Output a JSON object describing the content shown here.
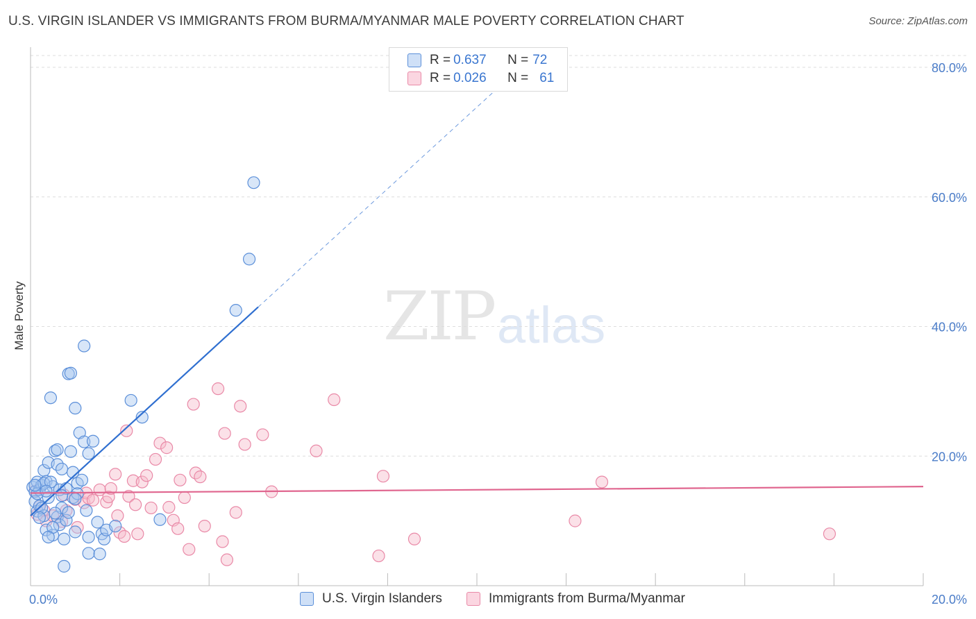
{
  "header": {
    "title": "U.S. VIRGIN ISLANDER VS IMMIGRANTS FROM BURMA/MYANMAR MALE POVERTY CORRELATION CHART",
    "source": "Source: ZipAtlas.com"
  },
  "watermark": {
    "zip": "ZIP",
    "atlas": "atlas"
  },
  "legend": {
    "blue": {
      "r_label": "R = ",
      "r_value": "0.637",
      "n_label": "N = ",
      "n_value": "72"
    },
    "pink": {
      "r_label": "R = ",
      "r_value": "0.026",
      "n_label": "N = ",
      "n_value": "61"
    }
  },
  "colors": {
    "blue_fill": "#a9c8f0",
    "blue_stroke": "#5b8fd9",
    "blue_line": "#2f6fd0",
    "pink_fill": "#f6bccd",
    "pink_stroke": "#e989a7",
    "pink_line": "#e0668f",
    "grid": "#dddddd",
    "tick_text": "#4a7cc8"
  },
  "chart_data": {
    "type": "scatter",
    "title": "U.S. VIRGIN ISLANDER VS IMMIGRANTS FROM BURMA/MYANMAR MALE POVERTY CORRELATION CHART",
    "xlabel": "",
    "ylabel": "Male Poverty",
    "xlim": [
      0,
      20
    ],
    "ylim": [
      0,
      80
    ],
    "y_ticks": [
      "20.0%",
      "40.0%",
      "60.0%",
      "80.0%"
    ],
    "x_tick_labels": [
      "0.0%",
      "20.0%"
    ],
    "series": [
      {
        "name": "U.S. Virgin Islanders",
        "color": "blue",
        "trend": {
          "x": [
            0,
            5.1
          ],
          "y": [
            10.8,
            43.0
          ],
          "dashed_to": [
            10.5,
            77
          ]
        },
        "points": [
          [
            0.05,
            15.2
          ],
          [
            0.1,
            14.5
          ],
          [
            0.1,
            13.0
          ],
          [
            0.15,
            16.0
          ],
          [
            0.15,
            11.5
          ],
          [
            0.2,
            14.8
          ],
          [
            0.2,
            12.3
          ],
          [
            0.25,
            15.5
          ],
          [
            0.3,
            17.8
          ],
          [
            0.3,
            10.8
          ],
          [
            0.35,
            16.1
          ],
          [
            0.35,
            8.6
          ],
          [
            0.4,
            19.0
          ],
          [
            0.4,
            13.6
          ],
          [
            0.45,
            29.0
          ],
          [
            0.5,
            15.3
          ],
          [
            0.5,
            7.8
          ],
          [
            0.55,
            20.8
          ],
          [
            0.6,
            21.0
          ],
          [
            0.6,
            18.7
          ],
          [
            0.6,
            10.6
          ],
          [
            0.65,
            14.8
          ],
          [
            0.65,
            9.4
          ],
          [
            0.7,
            18.0
          ],
          [
            0.7,
            12.0
          ],
          [
            0.75,
            3.0
          ],
          [
            0.75,
            7.2
          ],
          [
            0.8,
            15.0
          ],
          [
            0.8,
            10.1
          ],
          [
            0.85,
            32.7
          ],
          [
            0.9,
            32.8
          ],
          [
            0.9,
            20.7
          ],
          [
            0.95,
            17.5
          ],
          [
            0.95,
            13.6
          ],
          [
            1.0,
            27.4
          ],
          [
            1.0,
            8.3
          ],
          [
            1.05,
            15.8
          ],
          [
            1.05,
            14.2
          ],
          [
            1.1,
            23.6
          ],
          [
            1.15,
            16.3
          ],
          [
            1.2,
            37.0
          ],
          [
            1.2,
            22.2
          ],
          [
            1.25,
            11.6
          ],
          [
            1.3,
            20.4
          ],
          [
            1.3,
            7.5
          ],
          [
            1.3,
            5.0
          ],
          [
            1.4,
            22.3
          ],
          [
            1.5,
            9.8
          ],
          [
            1.55,
            4.9
          ],
          [
            1.6,
            8.0
          ],
          [
            1.65,
            7.2
          ],
          [
            1.7,
            8.6
          ],
          [
            1.9,
            9.2
          ],
          [
            2.25,
            28.6
          ],
          [
            2.5,
            26.0
          ],
          [
            2.9,
            10.2
          ],
          [
            4.6,
            42.5
          ],
          [
            4.9,
            50.4
          ],
          [
            5.0,
            62.2
          ],
          [
            0.15,
            14.2
          ],
          [
            0.25,
            12.0
          ],
          [
            0.3,
            15.8
          ],
          [
            0.45,
            16.0
          ],
          [
            0.55,
            11.2
          ],
          [
            0.2,
            10.5
          ],
          [
            0.1,
            15.5
          ],
          [
            0.35,
            14.6
          ],
          [
            0.5,
            9.0
          ],
          [
            0.7,
            13.9
          ],
          [
            0.4,
            7.5
          ],
          [
            0.85,
            11.3
          ],
          [
            1.0,
            13.4
          ]
        ]
      },
      {
        "name": "Immigrants from Burma/Myanmar",
        "color": "pink",
        "trend": {
          "x": [
            0,
            20
          ],
          "y": [
            14.3,
            15.3
          ]
        },
        "points": [
          [
            0.1,
            14.6
          ],
          [
            0.15,
            11.0
          ],
          [
            0.2,
            12.3
          ],
          [
            0.3,
            11.6
          ],
          [
            0.35,
            10.0
          ],
          [
            0.5,
            10.8
          ],
          [
            0.7,
            9.9
          ],
          [
            0.75,
            14.0
          ],
          [
            0.8,
            11.6
          ],
          [
            1.0,
            13.3
          ],
          [
            1.05,
            9.0
          ],
          [
            1.2,
            12.8
          ],
          [
            1.25,
            14.3
          ],
          [
            1.3,
            13.5
          ],
          [
            1.4,
            13.2
          ],
          [
            1.55,
            14.8
          ],
          [
            1.7,
            12.9
          ],
          [
            1.75,
            13.7
          ],
          [
            1.8,
            15.0
          ],
          [
            1.9,
            17.2
          ],
          [
            1.95,
            10.8
          ],
          [
            2.0,
            8.2
          ],
          [
            2.1,
            7.6
          ],
          [
            2.15,
            23.9
          ],
          [
            2.2,
            13.8
          ],
          [
            2.3,
            16.2
          ],
          [
            2.35,
            12.5
          ],
          [
            2.4,
            8.0
          ],
          [
            2.5,
            16.0
          ],
          [
            2.6,
            17.0
          ],
          [
            2.7,
            12.0
          ],
          [
            2.8,
            19.5
          ],
          [
            2.9,
            22.0
          ],
          [
            3.05,
            21.3
          ],
          [
            3.1,
            12.1
          ],
          [
            3.2,
            10.1
          ],
          [
            3.3,
            8.8
          ],
          [
            3.35,
            16.3
          ],
          [
            3.45,
            13.6
          ],
          [
            3.55,
            5.6
          ],
          [
            3.65,
            28.0
          ],
          [
            3.7,
            17.4
          ],
          [
            3.8,
            16.8
          ],
          [
            3.9,
            9.2
          ],
          [
            4.2,
            30.4
          ],
          [
            4.3,
            6.8
          ],
          [
            4.35,
            23.5
          ],
          [
            4.4,
            4.0
          ],
          [
            4.6,
            11.3
          ],
          [
            4.7,
            27.7
          ],
          [
            4.8,
            21.8
          ],
          [
            5.2,
            23.3
          ],
          [
            5.4,
            14.5
          ],
          [
            6.4,
            20.8
          ],
          [
            6.8,
            28.7
          ],
          [
            7.8,
            4.6
          ],
          [
            7.9,
            16.9
          ],
          [
            8.6,
            7.2
          ],
          [
            12.2,
            10.0
          ],
          [
            12.8,
            16.0
          ],
          [
            17.9,
            8.0
          ]
        ]
      }
    ]
  }
}
